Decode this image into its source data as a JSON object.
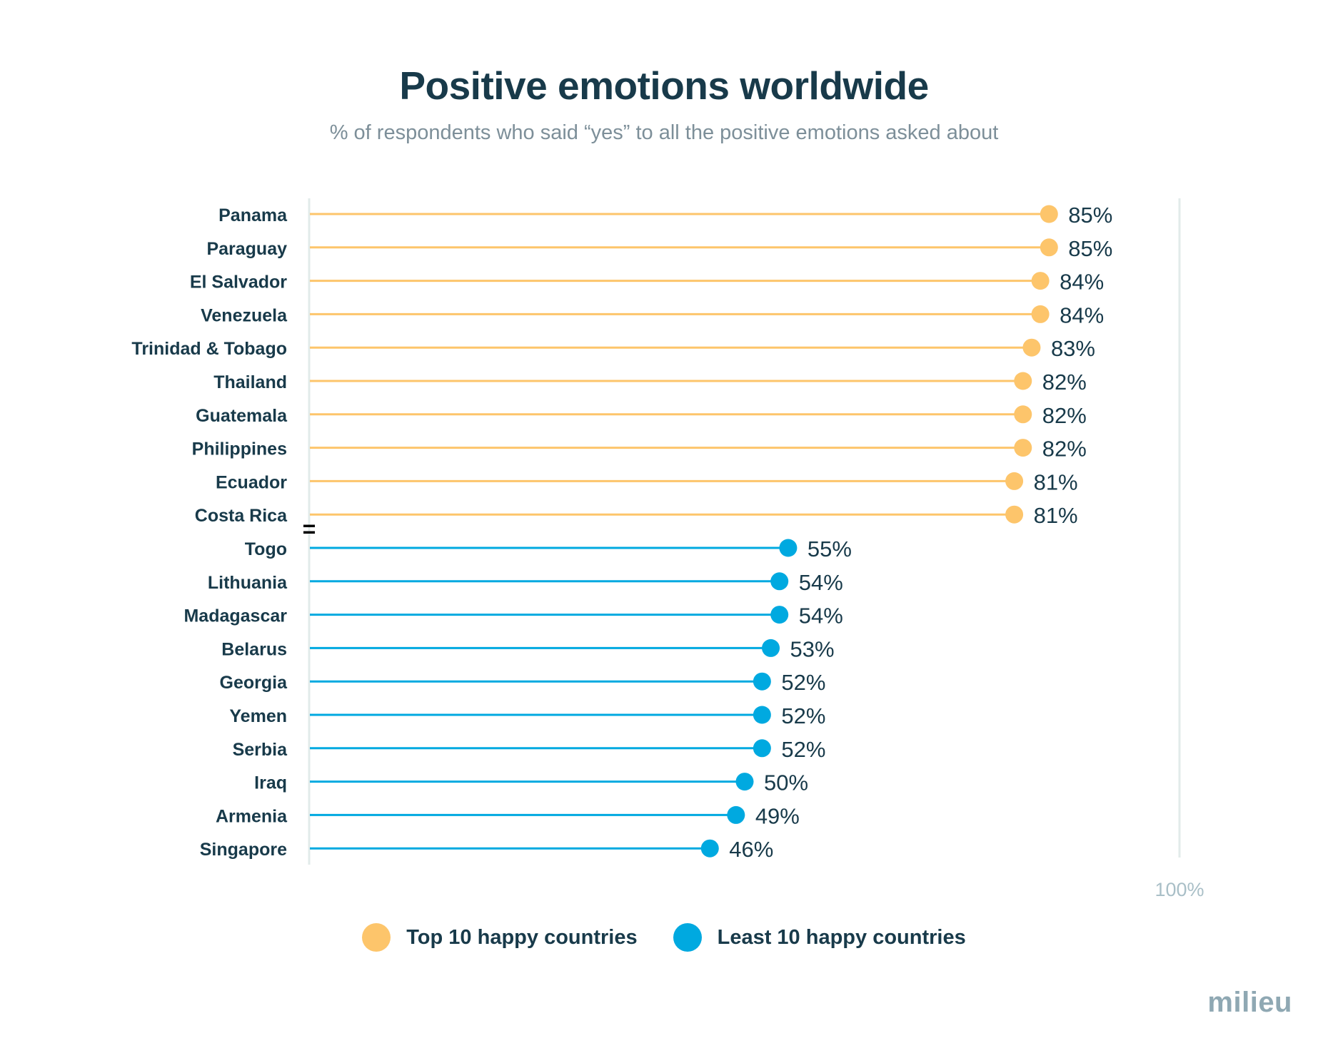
{
  "title": "Positive emotions worldwide",
  "subtitle": "% of respondents who said “yes” to all the positive emotions asked about",
  "brand": "milieu",
  "colors": {
    "top": "#fdc56b",
    "least": "#00a9e0",
    "title": "#183a4a",
    "subtitle": "#7d8f99",
    "axis": "#e2ebea",
    "axis_label": "#a9bfc7",
    "logo": "#8fa8b3"
  },
  "legend": {
    "top_label": "Top 10 happy countries",
    "least_label": "Least 10 happy countries"
  },
  "chart_data": {
    "type": "lollipop",
    "title": "Positive emotions worldwide",
    "subtitle": "% of respondents who said “yes” to all the positive emotions asked about",
    "unit": "%",
    "xlim": [
      0,
      100
    ],
    "end_axis_label": "100%",
    "axis_break_marker": "=",
    "legend_position": "bottom-center",
    "grid": false,
    "series": [
      {
        "name": "Top 10 happy countries",
        "color": "#fdc56b",
        "categories": [
          "Panama",
          "Paraguay",
          "El Salvador",
          "Venezuela",
          "Trinidad & Tobago",
          "Thailand",
          "Guatemala",
          "Philippines",
          "Ecuador",
          "Costa Rica"
        ],
        "values": [
          85,
          85,
          84,
          84,
          83,
          82,
          82,
          82,
          81,
          81
        ]
      },
      {
        "name": "Least 10 happy countries",
        "color": "#00a9e0",
        "categories": [
          "Togo",
          "Lithuania",
          "Madagascar",
          "Belarus",
          "Georgia",
          "Yemen",
          "Serbia",
          "Iraq",
          "Armenia",
          "Singapore"
        ],
        "values": [
          55,
          54,
          54,
          53,
          52,
          52,
          52,
          50,
          49,
          46
        ]
      }
    ]
  }
}
